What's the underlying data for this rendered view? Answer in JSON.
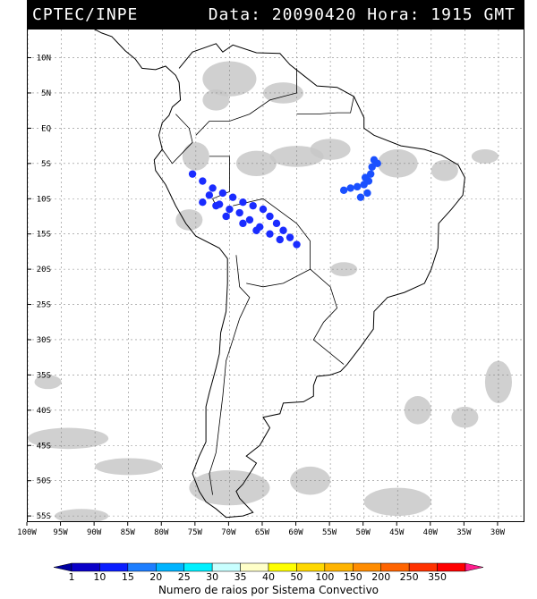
{
  "header": {
    "source": "CPTEC/INPE",
    "datetime": "Data: 20090420 Hora: 1915 GMT"
  },
  "map": {
    "region": "South America",
    "projection": "lat-lon",
    "lat_range": [
      -56,
      14
    ],
    "lon_range": [
      -100,
      -26
    ],
    "lat_ticks": [
      {
        "value": 10,
        "label": "10N"
      },
      {
        "value": 5,
        "label": "5N"
      },
      {
        "value": 0,
        "label": "EQ"
      },
      {
        "value": -5,
        "label": "5S"
      },
      {
        "value": -10,
        "label": "10S"
      },
      {
        "value": -15,
        "label": "15S"
      },
      {
        "value": -20,
        "label": "20S"
      },
      {
        "value": -25,
        "label": "25S"
      },
      {
        "value": -30,
        "label": "30S"
      },
      {
        "value": -35,
        "label": "35S"
      },
      {
        "value": -40,
        "label": "40S"
      },
      {
        "value": -45,
        "label": "45S"
      },
      {
        "value": -50,
        "label": "50S"
      },
      {
        "value": -55,
        "label": "55S"
      }
    ],
    "lon_ticks": [
      {
        "value": -100,
        "label": "100W"
      },
      {
        "value": -95,
        "label": "95W"
      },
      {
        "value": -90,
        "label": "90W"
      },
      {
        "value": -85,
        "label": "85W"
      },
      {
        "value": -80,
        "label": "80W"
      },
      {
        "value": -75,
        "label": "75W"
      },
      {
        "value": -70,
        "label": "70W"
      },
      {
        "value": -65,
        "label": "65W"
      },
      {
        "value": -60,
        "label": "60W"
      },
      {
        "value": -55,
        "label": "55W"
      },
      {
        "value": -50,
        "label": "50W"
      },
      {
        "value": -45,
        "label": "45W"
      },
      {
        "value": -40,
        "label": "40W"
      },
      {
        "value": -35,
        "label": "35W"
      },
      {
        "value": -30,
        "label": "30W"
      }
    ],
    "grid": true,
    "cloud_color": "#c8c8c8",
    "convective_systems": [
      {
        "name": "amazon-west-system",
        "color": "#1a2cff",
        "points": [
          [
            -75.5,
            -6.5
          ],
          [
            -74,
            -7.5
          ],
          [
            -72.5,
            -8.5
          ],
          [
            -71,
            -9.2
          ],
          [
            -69.5,
            -9.8
          ],
          [
            -68,
            -10.5
          ],
          [
            -66.5,
            -11
          ],
          [
            -65,
            -11.5
          ],
          [
            -64,
            -12.5
          ],
          [
            -63,
            -13.5
          ],
          [
            -62,
            -14.5
          ],
          [
            -61,
            -15.5
          ],
          [
            -60,
            -16.5
          ],
          [
            -73,
            -9.5
          ],
          [
            -71.5,
            -10.8
          ],
          [
            -70,
            -11.5
          ],
          [
            -68.5,
            -12
          ],
          [
            -67,
            -13
          ],
          [
            -65.5,
            -14
          ],
          [
            -64,
            -15
          ],
          [
            -62.5,
            -15.8
          ],
          [
            -74,
            -10.5
          ],
          [
            -72,
            -11
          ],
          [
            -70.5,
            -12.5
          ],
          [
            -68,
            -13.5
          ],
          [
            -66,
            -14.5
          ]
        ]
      },
      {
        "name": "northeast-system",
        "color": "#1a50ff",
        "points": [
          [
            -48.5,
            -4.5
          ],
          [
            -48.8,
            -5.5
          ],
          [
            -49,
            -6.5
          ],
          [
            -49.3,
            -7.5
          ],
          [
            -50,
            -8
          ],
          [
            -51,
            -8.3
          ],
          [
            -52,
            -8.5
          ],
          [
            -53,
            -8.8
          ],
          [
            -49.5,
            -9.2
          ],
          [
            -50.5,
            -9.8
          ],
          [
            -48,
            -5
          ],
          [
            -49.8,
            -7
          ]
        ]
      }
    ]
  },
  "legend": {
    "caption": "Numero de raios por Sistema Convectivo",
    "bins": [
      {
        "label": "1",
        "color": "#0a00c8"
      },
      {
        "label": "10",
        "color": "#0a1eff"
      },
      {
        "label": "15",
        "color": "#1e7eff"
      },
      {
        "label": "20",
        "color": "#00b4ff"
      },
      {
        "label": "25",
        "color": "#00f0ff"
      },
      {
        "label": "30",
        "color": "#c8ffff"
      },
      {
        "label": "35",
        "color": "#ffffc8"
      },
      {
        "label": "40",
        "color": "#ffff00"
      },
      {
        "label": "50",
        "color": "#ffd800"
      },
      {
        "label": "100",
        "color": "#ffb400"
      },
      {
        "label": "150",
        "color": "#ff8c00"
      },
      {
        "label": "200",
        "color": "#ff6400"
      },
      {
        "label": "250",
        "color": "#ff3200"
      },
      {
        "label": "350",
        "color": "#ff0000"
      }
    ],
    "end_color": "#ff1e8c"
  }
}
